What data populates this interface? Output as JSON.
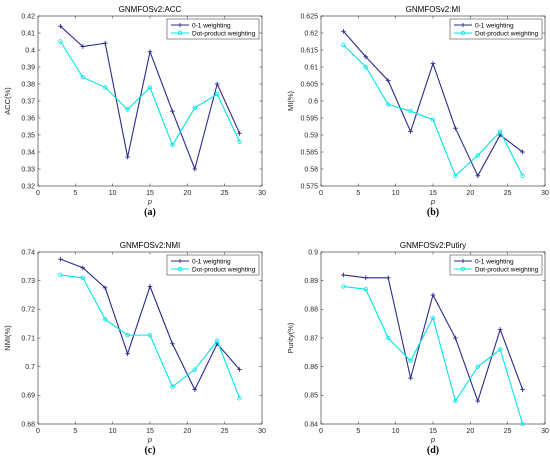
{
  "chart_data": [
    {
      "type": "line",
      "title": "GNMFOSv2:ACC",
      "xlabel": "p",
      "ylabel": "ACC(%)",
      "caption": "(a)",
      "xlim": [
        0,
        30
      ],
      "ylim": [
        0.32,
        0.42
      ],
      "xticks": [
        0,
        5,
        10,
        15,
        20,
        25,
        30
      ],
      "yticks": [
        0.32,
        0.33,
        0.34,
        0.35,
        0.36,
        0.37,
        0.38,
        0.39,
        0.4,
        0.41,
        0.42
      ],
      "legend_position": "top-right",
      "x": [
        3,
        6,
        9,
        12,
        15,
        18,
        21,
        24,
        27
      ],
      "series": [
        {
          "name": "0-1 weighting",
          "color": "#2b2b8c",
          "marker": "plus",
          "values": [
            0.414,
            0.402,
            0.404,
            0.337,
            0.399,
            0.364,
            0.33,
            0.38,
            0.351
          ]
        },
        {
          "name": "Dot-product weighting",
          "color": "#00e5e5",
          "marker": "circle",
          "values": [
            0.405,
            0.384,
            0.378,
            0.365,
            0.378,
            0.344,
            0.366,
            0.374,
            0.346
          ]
        }
      ]
    },
    {
      "type": "line",
      "title": "GNMFOSv2:MI",
      "xlabel": "p",
      "ylabel": "MI(%)",
      "caption": "(b)",
      "xlim": [
        0,
        30
      ],
      "ylim": [
        0.575,
        0.625
      ],
      "xticks": [
        0,
        5,
        10,
        15,
        20,
        25,
        30
      ],
      "yticks": [
        0.575,
        0.58,
        0.585,
        0.59,
        0.595,
        0.6,
        0.605,
        0.61,
        0.615,
        0.62,
        0.625
      ],
      "legend_position": "top-right",
      "x": [
        3,
        6,
        9,
        12,
        15,
        18,
        21,
        24,
        27
      ],
      "series": [
        {
          "name": "0-1 weighting",
          "color": "#2b2b8c",
          "marker": "plus",
          "values": [
            0.6205,
            0.613,
            0.606,
            0.591,
            0.611,
            0.592,
            0.578,
            0.59,
            0.585
          ]
        },
        {
          "name": "Dot-product weighting",
          "color": "#00e5e5",
          "marker": "circle",
          "values": [
            0.6165,
            0.61,
            0.599,
            0.597,
            0.5945,
            0.578,
            0.584,
            0.591,
            0.578
          ]
        }
      ]
    },
    {
      "type": "line",
      "title": "GNMFOSv2:NMI",
      "xlabel": "p",
      "ylabel": "NMI(%)",
      "caption": "(c)",
      "xlim": [
        0,
        30
      ],
      "ylim": [
        0.68,
        0.74
      ],
      "xticks": [
        0,
        5,
        10,
        15,
        20,
        25,
        30
      ],
      "yticks": [
        0.68,
        0.69,
        0.7,
        0.71,
        0.72,
        0.73,
        0.74
      ],
      "legend_position": "top-right",
      "x": [
        3,
        6,
        9,
        12,
        15,
        18,
        21,
        24,
        27
      ],
      "series": [
        {
          "name": "0-1 weighting",
          "color": "#2b2b8c",
          "marker": "plus",
          "values": [
            0.7375,
            0.7345,
            0.7275,
            0.7045,
            0.728,
            0.708,
            0.692,
            0.708,
            0.699
          ]
        },
        {
          "name": "Dot-product weighting",
          "color": "#00e5e5",
          "marker": "circle",
          "values": [
            0.732,
            0.731,
            0.7165,
            0.711,
            0.711,
            0.693,
            0.699,
            0.709,
            0.689
          ]
        }
      ]
    },
    {
      "type": "line",
      "title": "GNMFOSv2:Putiry",
      "xlabel": "p",
      "ylabel": "Purity(%)",
      "caption": "(d)",
      "xlim": [
        0,
        30
      ],
      "ylim": [
        0.84,
        0.9
      ],
      "xticks": [
        0,
        5,
        10,
        15,
        20,
        25,
        30
      ],
      "yticks": [
        0.84,
        0.85,
        0.86,
        0.87,
        0.88,
        0.89,
        0.9
      ],
      "legend_position": "top-right",
      "x": [
        3,
        6,
        9,
        12,
        15,
        18,
        21,
        24,
        27
      ],
      "series": [
        {
          "name": "0-1 weighting",
          "color": "#2b2b8c",
          "marker": "plus",
          "values": [
            0.892,
            0.891,
            0.891,
            0.856,
            0.885,
            0.87,
            0.848,
            0.873,
            0.852
          ]
        },
        {
          "name": "Dot-product weighting",
          "color": "#00e5e5",
          "marker": "circle",
          "values": [
            0.888,
            0.887,
            0.87,
            0.862,
            0.877,
            0.848,
            0.86,
            0.866,
            0.84
          ]
        }
      ]
    }
  ]
}
